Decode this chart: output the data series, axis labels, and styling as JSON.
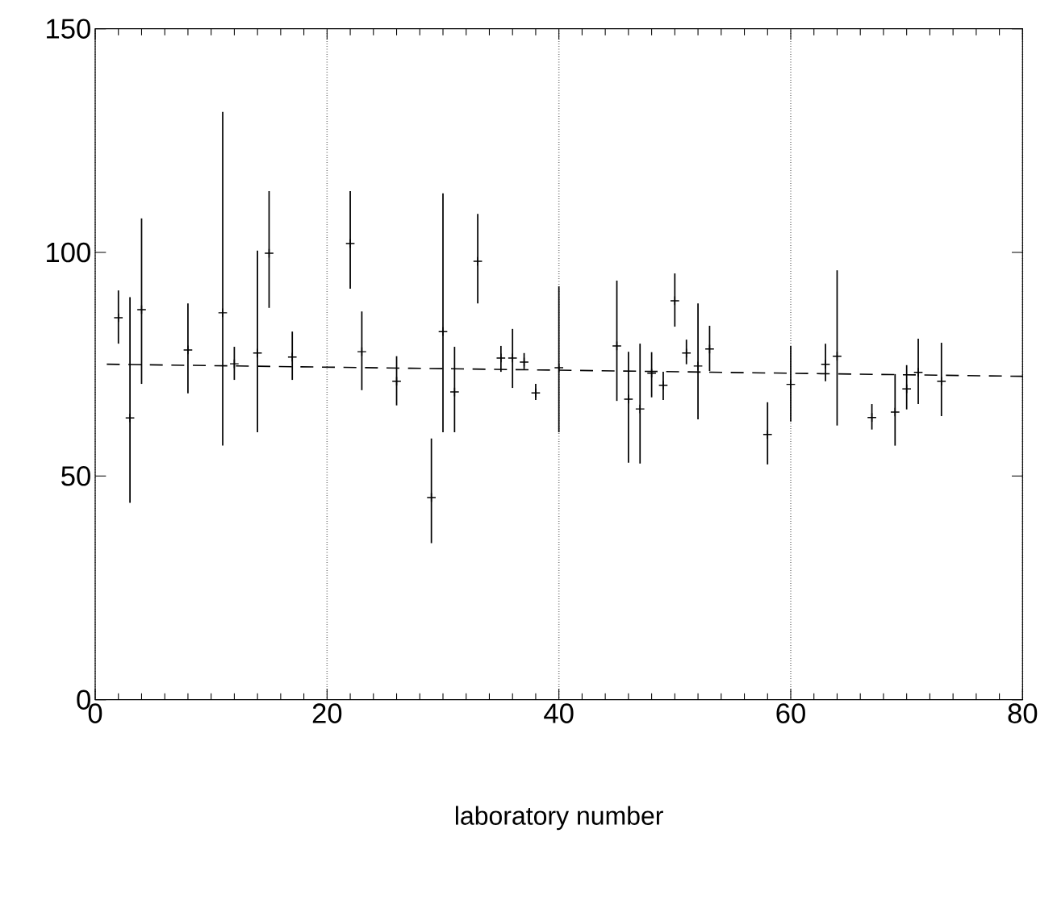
{
  "chart_data": {
    "type": "scatter",
    "xlabel": "laboratory number",
    "xlim": [
      0,
      80
    ],
    "ylim": [
      0,
      150
    ],
    "xticks": [
      0,
      20,
      40,
      60,
      80
    ],
    "yticks": [
      0,
      50,
      100,
      150
    ],
    "grid": "x",
    "x": [
      2,
      3,
      4,
      8,
      11,
      12,
      14,
      15,
      17,
      22,
      23,
      26,
      29,
      30,
      31,
      33,
      35,
      36,
      37,
      38,
      40,
      45,
      46,
      47,
      48,
      49,
      50,
      51,
      52,
      53,
      58,
      60,
      63,
      64,
      67,
      69,
      70,
      71,
      73
    ],
    "series": [
      {
        "color": "#000000",
        "marker": "cross",
        "values": [
          85.4,
          63,
          87.2,
          78.2,
          86.5,
          75.1,
          77.5,
          99.8,
          76.6,
          102,
          77.8,
          71.2,
          45.2,
          82.3,
          68.8,
          98,
          76.4,
          76.4,
          75.5,
          68.6,
          74.2,
          79.1,
          67.2,
          65,
          73,
          70.3,
          89.2,
          77.5,
          74.6,
          78.4,
          59.3,
          70.5,
          75,
          76.8,
          63.1,
          64.3,
          69.5,
          73.2,
          71.2
        ],
        "errors": [
          [
            79.6,
            91.5
          ],
          [
            44,
            90
          ],
          [
            70.6,
            107.6
          ],
          [
            68.5,
            88.6
          ],
          [
            56.8,
            131.4
          ],
          [
            71.5,
            78.9
          ],
          [
            59.8,
            100.4
          ],
          [
            87.6,
            113.7
          ],
          [
            71.5,
            82.3
          ],
          [
            91.9,
            113.7
          ],
          [
            69.2,
            86.8
          ],
          [
            65.8,
            76.8
          ],
          [
            35,
            58.4
          ],
          [
            59.8,
            113.2
          ],
          [
            59.8,
            78.9
          ],
          [
            88.6,
            108.6
          ],
          [
            73.3,
            79.1
          ],
          [
            69.7,
            82.9
          ],
          [
            73.9,
            77.5
          ],
          [
            67,
            70.6
          ],
          [
            59.8,
            92.4
          ],
          [
            66.8,
            93.7
          ],
          [
            53,
            77.8
          ],
          [
            52.8,
            79.6
          ],
          [
            67.6,
            77.7
          ],
          [
            67,
            73.3
          ],
          [
            83.4,
            95.3
          ],
          [
            75,
            80.5
          ],
          [
            62.7,
            88.6
          ],
          [
            73.5,
            83.6
          ],
          [
            52.6,
            66.5
          ],
          [
            62.2,
            79.1
          ],
          [
            71.2,
            79.6
          ],
          [
            61.3,
            96
          ],
          [
            60.4,
            66.1
          ],
          [
            56.8,
            72.8
          ],
          [
            64.9,
            74.8
          ],
          [
            66.1,
            80.7
          ],
          [
            63.4,
            79.8
          ]
        ]
      },
      {
        "type": "line",
        "x": [
          1,
          80
        ],
        "values": [
          75,
          72.3
        ],
        "color": "#000000",
        "line_style": "dashed"
      }
    ]
  }
}
